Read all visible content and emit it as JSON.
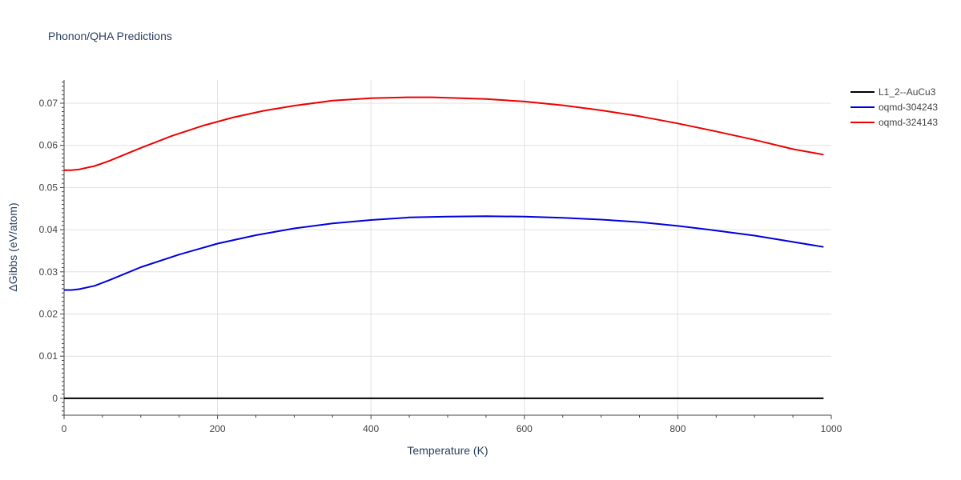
{
  "chart_data": {
    "type": "line",
    "title": "Phonon/QHA Predictions",
    "xlabel": "Temperature (K)",
    "ylabel": "ΔGibbs (eV/atom)",
    "xlim": [
      0,
      1000
    ],
    "ylim": [
      -0.004,
      0.0755
    ],
    "x_ticks": [
      0,
      200,
      400,
      600,
      800,
      1000
    ],
    "y_ticks": [
      0,
      0.01,
      0.02,
      0.03,
      0.04,
      0.05,
      0.06,
      0.07
    ],
    "x_tick_labels": [
      "0",
      "200",
      "400",
      "600",
      "800",
      "1000"
    ],
    "y_tick_labels": [
      "0",
      "0.01",
      "0.02",
      "0.03",
      "0.04",
      "0.05",
      "0.06",
      "0.07"
    ],
    "grid": true,
    "legend_position": "top-right",
    "series": [
      {
        "name": "L1_2--AuCu3",
        "color": "#000000",
        "x": [
          0,
          100,
          200,
          300,
          400,
          500,
          600,
          700,
          800,
          900,
          990
        ],
        "y": [
          0,
          0,
          0,
          0,
          0,
          0,
          0,
          0,
          0,
          0,
          0
        ]
      },
      {
        "name": "oqmd-304243",
        "color": "#0000dd",
        "x": [
          0,
          10,
          20,
          40,
          60,
          80,
          100,
          150,
          200,
          250,
          300,
          350,
          400,
          450,
          500,
          550,
          600,
          650,
          700,
          750,
          800,
          850,
          900,
          950,
          990
        ],
        "y": [
          0.0257,
          0.0257,
          0.0259,
          0.0267,
          0.0281,
          0.0296,
          0.0311,
          0.0341,
          0.0367,
          0.0387,
          0.0403,
          0.0415,
          0.0423,
          0.0429,
          0.0431,
          0.0432,
          0.0431,
          0.0428,
          0.0424,
          0.0418,
          0.0409,
          0.0398,
          0.0386,
          0.0371,
          0.0359
        ]
      },
      {
        "name": "oqmd-324143",
        "color": "#ee0000",
        "x": [
          0,
          10,
          20,
          40,
          60,
          80,
          100,
          140,
          180,
          220,
          260,
          300,
          350,
          400,
          450,
          480,
          550,
          600,
          650,
          700,
          750,
          800,
          850,
          900,
          950,
          990
        ],
        "y": [
          0.0541,
          0.0541,
          0.0543,
          0.0551,
          0.0564,
          0.0579,
          0.0594,
          0.0622,
          0.0646,
          0.0666,
          0.0682,
          0.0694,
          0.0706,
          0.0712,
          0.0714,
          0.0714,
          0.071,
          0.0704,
          0.0695,
          0.0683,
          0.0669,
          0.0652,
          0.0633,
          0.0613,
          0.0591,
          0.0578
        ]
      }
    ]
  }
}
